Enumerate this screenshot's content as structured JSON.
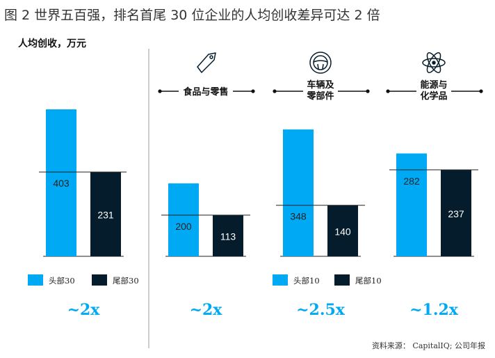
{
  "page": {
    "title": "图 2 世界五百强，排名首尾 30 位企业的人均创收差异可达 2 倍",
    "ylabel": "人均创收，万元",
    "source": "资料来源： CapitalIQ; 公司年报"
  },
  "colors": {
    "head": "#00A9F4",
    "tail": "#051C2C",
    "line": "#222222",
    "divider": "#999999"
  },
  "chart_data": [
    {
      "type": "bar",
      "group": "",
      "icon": "",
      "categories": [
        "头部30",
        "尾部30"
      ],
      "values": [
        403,
        231
      ],
      "multiplier": "~2x",
      "legend": [
        "头部30",
        "尾部30"
      ]
    },
    {
      "type": "bar",
      "group": "食品与零售",
      "icon": "tag-icon",
      "categories": [
        "头部10",
        "尾部10"
      ],
      "values": [
        200,
        113
      ],
      "multiplier": "~2x"
    },
    {
      "type": "bar",
      "group": "车辆及零部件",
      "icon": "steering-wheel-icon",
      "categories": [
        "头部10",
        "尾部10"
      ],
      "values": [
        348,
        140
      ],
      "multiplier": "~2.5x",
      "legend": [
        "头部10",
        "尾部10"
      ]
    },
    {
      "type": "bar",
      "group": "能源与化学品",
      "icon": "atom-icon",
      "categories": [
        "头部10",
        "尾部10"
      ],
      "values": [
        282,
        237
      ],
      "multiplier": "~1.2x"
    }
  ]
}
